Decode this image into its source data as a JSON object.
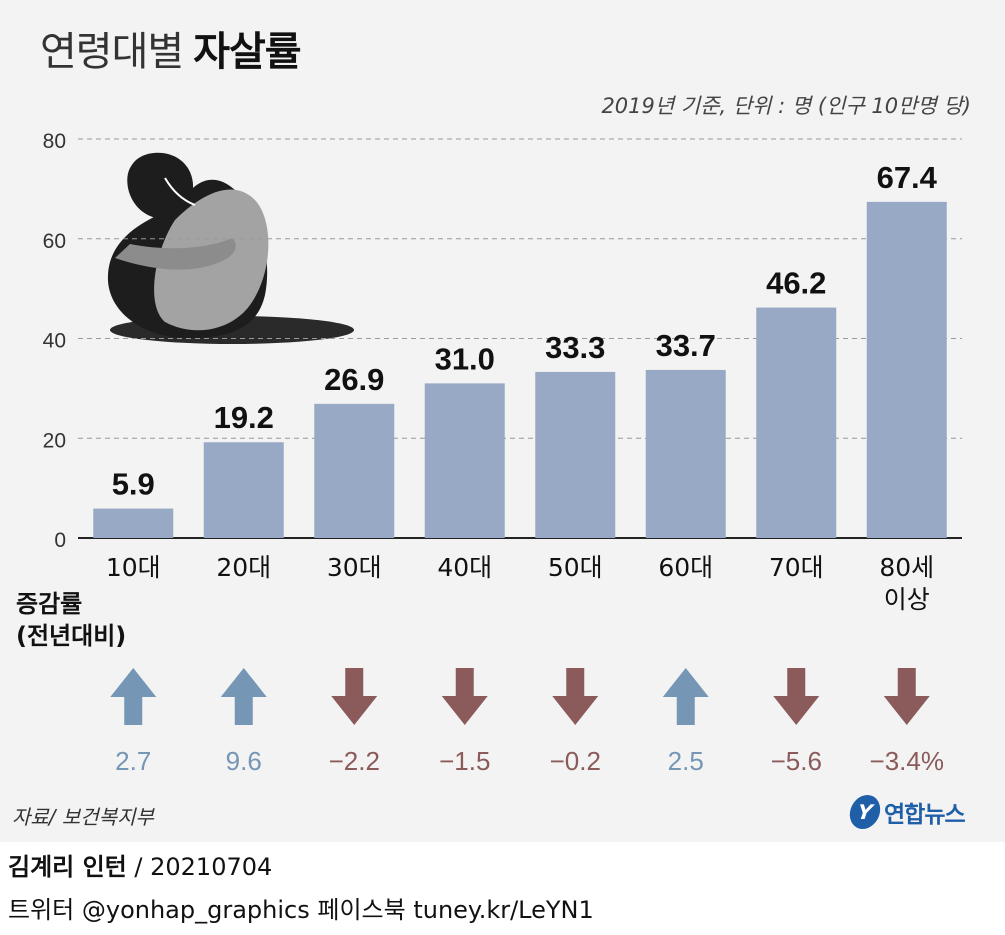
{
  "title": {
    "light": "연령대별",
    "bold": "자살률"
  },
  "unit_note": "2019년 기준, 단위 : 명 (인구 10만명 당)",
  "chart_data": {
    "type": "bar",
    "categories": [
      "10대",
      "20대",
      "30대",
      "40대",
      "50대",
      "60대",
      "70대",
      "80세 이상"
    ],
    "category_labels": [
      [
        "10대"
      ],
      [
        "20대"
      ],
      [
        "30대"
      ],
      [
        "40대"
      ],
      [
        "50대"
      ],
      [
        "60대"
      ],
      [
        "70대"
      ],
      [
        "80세",
        "이상"
      ]
    ],
    "values": [
      5.9,
      19.2,
      26.9,
      31.0,
      33.3,
      33.7,
      46.2,
      67.4
    ],
    "value_labels": [
      "5.9",
      "19.2",
      "26.9",
      "31.0",
      "33.3",
      "33.7",
      "46.2",
      "67.4"
    ],
    "y_ticks": [
      0,
      20,
      40,
      60,
      80
    ],
    "ylim": [
      0,
      80
    ],
    "grid": true,
    "bar_color": "#97a9c4",
    "change": {
      "values": [
        2.7,
        9.6,
        -2.2,
        -1.5,
        -0.2,
        2.5,
        -5.6,
        -3.4
      ],
      "labels": [
        "2.7",
        "9.6",
        "−2.2",
        "−1.5",
        "−0.2",
        "2.5",
        "−5.6",
        "−3.4%"
      ],
      "up_color": "#7596b5",
      "down_color": "#8b5a5a"
    }
  },
  "change_label": {
    "line1": "증감률",
    "line2": "(전년대비)"
  },
  "source": "자료/ 보건복지부",
  "logo": {
    "mark": "Y",
    "text": "연합뉴스",
    "color": "#1f5fa8"
  },
  "credit": {
    "name": "김계리 인턴",
    "date": " / 20210704"
  },
  "social": "트위터 @yonhap_graphics  페이스북 tuney.kr/LeYN1"
}
